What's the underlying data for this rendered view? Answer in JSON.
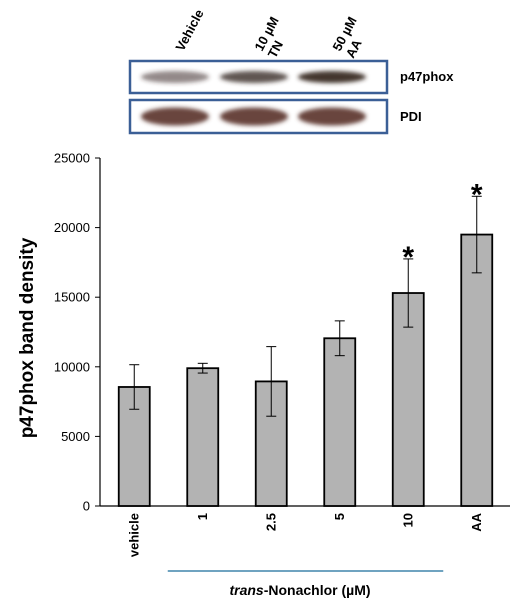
{
  "blot": {
    "lanes": [
      {
        "line1": "Vehicle",
        "line2": ""
      },
      {
        "line1": "10 µM",
        "line2": "TN"
      },
      {
        "line1": "50 µM",
        "line2": "AA"
      }
    ],
    "rows": [
      {
        "label": "p47phox",
        "band_color": "#3a2a24",
        "band_intensity": [
          0.55,
          0.8,
          0.95
        ]
      },
      {
        "label": "PDI",
        "band_color": "#5a3028",
        "band_intensity": [
          0.9,
          0.9,
          0.9
        ]
      }
    ],
    "frame_color": "#3b5f96"
  },
  "chart_data": {
    "type": "bar",
    "categories": [
      "vehicle",
      "1",
      "2.5",
      "5",
      "10",
      "AA"
    ],
    "values": [
      8550,
      9900,
      8950,
      12050,
      15300,
      19500
    ],
    "errors": [
      1600,
      350,
      2500,
      1250,
      2450,
      2750
    ],
    "significant": [
      false,
      false,
      false,
      false,
      true,
      true
    ],
    "significance_marker": "*",
    "ylabel": "p47phox band density",
    "xlabel_italic": "trans",
    "xlabel_rest": "-Nonachlor (µM)",
    "xlabel_bracket_categories": [
      1,
      4
    ],
    "ylim": [
      0,
      25000
    ],
    "yticks": [
      0,
      5000,
      10000,
      15000,
      20000,
      25000
    ],
    "bar_color": "#b3b3b3",
    "bracket_color": "#6fa3c0",
    "grid": false,
    "legend": "none"
  }
}
